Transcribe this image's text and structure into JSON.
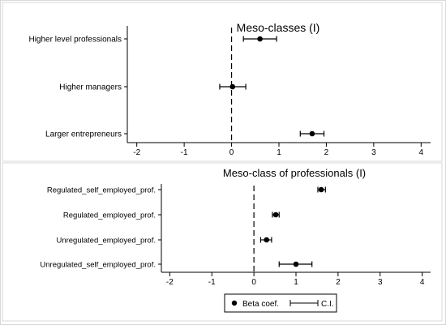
{
  "chart_data": [
    {
      "type": "scatter",
      "subtype": "coefficient-plot",
      "title": "Meso-classes (I)",
      "categories": [
        "Higher level professionals",
        "Higher managers",
        "Larger entrepreneurs"
      ],
      "series": [
        {
          "name": "Beta coef.",
          "values": [
            0.6,
            0.02,
            1.7
          ],
          "ci_low": [
            0.25,
            -0.25,
            1.45
          ],
          "ci_high": [
            0.95,
            0.3,
            1.95
          ]
        }
      ],
      "xlim": [
        -2.2,
        4.2
      ],
      "xticks": [
        "-2",
        "-1",
        "0",
        "1",
        "2",
        "3",
        "4"
      ],
      "xtick_values": [
        -2,
        -1,
        0,
        1,
        2,
        3,
        4
      ],
      "reference_line": 0,
      "grid": false
    },
    {
      "type": "scatter",
      "subtype": "coefficient-plot",
      "title": "Meso-class of professionals (I)",
      "categories": [
        "Regulated_self_employed_prof.",
        "Regulated_employed_prof.",
        "Unregulated_employed_prof.",
        "Unregulated_self_employed_prof."
      ],
      "series": [
        {
          "name": "Beta coef.",
          "values": [
            1.6,
            0.52,
            0.3,
            1.0
          ],
          "ci_low": [
            1.52,
            0.44,
            0.16,
            0.6
          ],
          "ci_high": [
            1.7,
            0.6,
            0.42,
            1.38
          ]
        }
      ],
      "xlim": [
        -2.2,
        4.2
      ],
      "xticks": [
        "-2",
        "-1",
        "0",
        "1",
        "2",
        "3",
        "4"
      ],
      "xtick_values": [
        -2,
        -1,
        0,
        1,
        2,
        3,
        4
      ],
      "reference_line": 0,
      "grid": false
    }
  ],
  "legend": {
    "point_label": "Beta coef.",
    "ci_label": "C.I.",
    "placement": "bottom-center"
  },
  "colors": {
    "frame": "#d9d9d9",
    "ink": "#000000",
    "background": "#ffffff"
  }
}
